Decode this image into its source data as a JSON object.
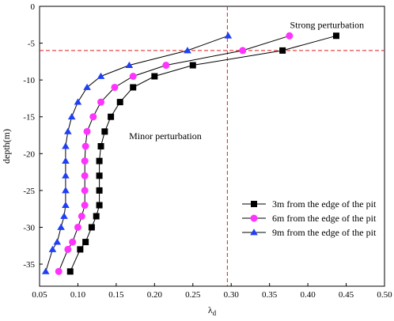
{
  "chart_data": {
    "type": "scatter",
    "title": "",
    "xlabel_main": "λ",
    "xlabel_sub": "d",
    "ylabel": "depth(m)",
    "xlim": [
      0.05,
      0.5
    ],
    "ylim": [
      -38,
      0
    ],
    "x_ticks": [
      0.05,
      0.1,
      0.15,
      0.2,
      0.25,
      0.3,
      0.35,
      0.4,
      0.45,
      0.5
    ],
    "x_tick_labels": [
      "0.05",
      "0.10",
      "0.15",
      "0.20",
      "0.25",
      "0.30",
      "0.35",
      "0.40",
      "0.45",
      "0.50"
    ],
    "y_ticks": [
      0,
      -5,
      -10,
      -15,
      -20,
      -25,
      -30,
      -35
    ],
    "y_tick_labels": [
      "0",
      "-5",
      "-10",
      "-15",
      "-20",
      "-25",
      "-30",
      "-35"
    ],
    "grid": false,
    "legend_position": "bottom-right",
    "reference_lines": [
      {
        "orientation": "vertical",
        "x": 0.295,
        "color": "#e31a1c",
        "style": "dashed"
      },
      {
        "orientation": "horizontal",
        "y": -6,
        "color": "#e31a1c",
        "style": "dashed"
      }
    ],
    "annotations": [
      {
        "text": "Strong perturbation",
        "x": 0.425,
        "y": -2.5
      },
      {
        "text": "Minor perturbation",
        "x": 0.214,
        "y": -17.6
      }
    ],
    "series": [
      {
        "name": "3m from the edge of the pit",
        "marker": "square",
        "color": "#000000",
        "points": [
          [
            0.437,
            -4
          ],
          [
            0.367,
            -6
          ],
          [
            0.25,
            -8
          ],
          [
            0.2,
            -9.5
          ],
          [
            0.172,
            -11
          ],
          [
            0.155,
            -13
          ],
          [
            0.143,
            -15
          ],
          [
            0.135,
            -17
          ],
          [
            0.13,
            -19
          ],
          [
            0.128,
            -21
          ],
          [
            0.128,
            -23
          ],
          [
            0.128,
            -25
          ],
          [
            0.128,
            -27
          ],
          [
            0.124,
            -28.5
          ],
          [
            0.118,
            -30
          ],
          [
            0.11,
            -32
          ],
          [
            0.103,
            -33
          ],
          [
            0.09,
            -36
          ]
        ]
      },
      {
        "name": "6m from the edge of the pit",
        "marker": "circle",
        "color": "#ff33ff",
        "points": [
          [
            0.376,
            -4
          ],
          [
            0.315,
            -6
          ],
          [
            0.215,
            -8
          ],
          [
            0.172,
            -9.5
          ],
          [
            0.148,
            -11
          ],
          [
            0.13,
            -13
          ],
          [
            0.12,
            -15
          ],
          [
            0.112,
            -17
          ],
          [
            0.11,
            -19
          ],
          [
            0.109,
            -21
          ],
          [
            0.109,
            -23
          ],
          [
            0.109,
            -25
          ],
          [
            0.109,
            -27
          ],
          [
            0.105,
            -28.5
          ],
          [
            0.1,
            -30
          ],
          [
            0.093,
            -32
          ],
          [
            0.087,
            -33
          ],
          [
            0.075,
            -36
          ]
        ]
      },
      {
        "name": "9m from the edge of the pit",
        "marker": "triangle",
        "color": "#1f3ff5",
        "points": [
          [
            0.296,
            -4
          ],
          [
            0.243,
            -6
          ],
          [
            0.167,
            -8
          ],
          [
            0.13,
            -9.5
          ],
          [
            0.112,
            -11
          ],
          [
            0.1,
            -13
          ],
          [
            0.092,
            -15
          ],
          [
            0.087,
            -17
          ],
          [
            0.084,
            -19
          ],
          [
            0.084,
            -21
          ],
          [
            0.084,
            -23
          ],
          [
            0.084,
            -25
          ],
          [
            0.084,
            -27
          ],
          [
            0.082,
            -28.5
          ],
          [
            0.078,
            -30
          ],
          [
            0.073,
            -32
          ],
          [
            0.067,
            -33
          ],
          [
            0.058,
            -36
          ]
        ]
      }
    ]
  }
}
